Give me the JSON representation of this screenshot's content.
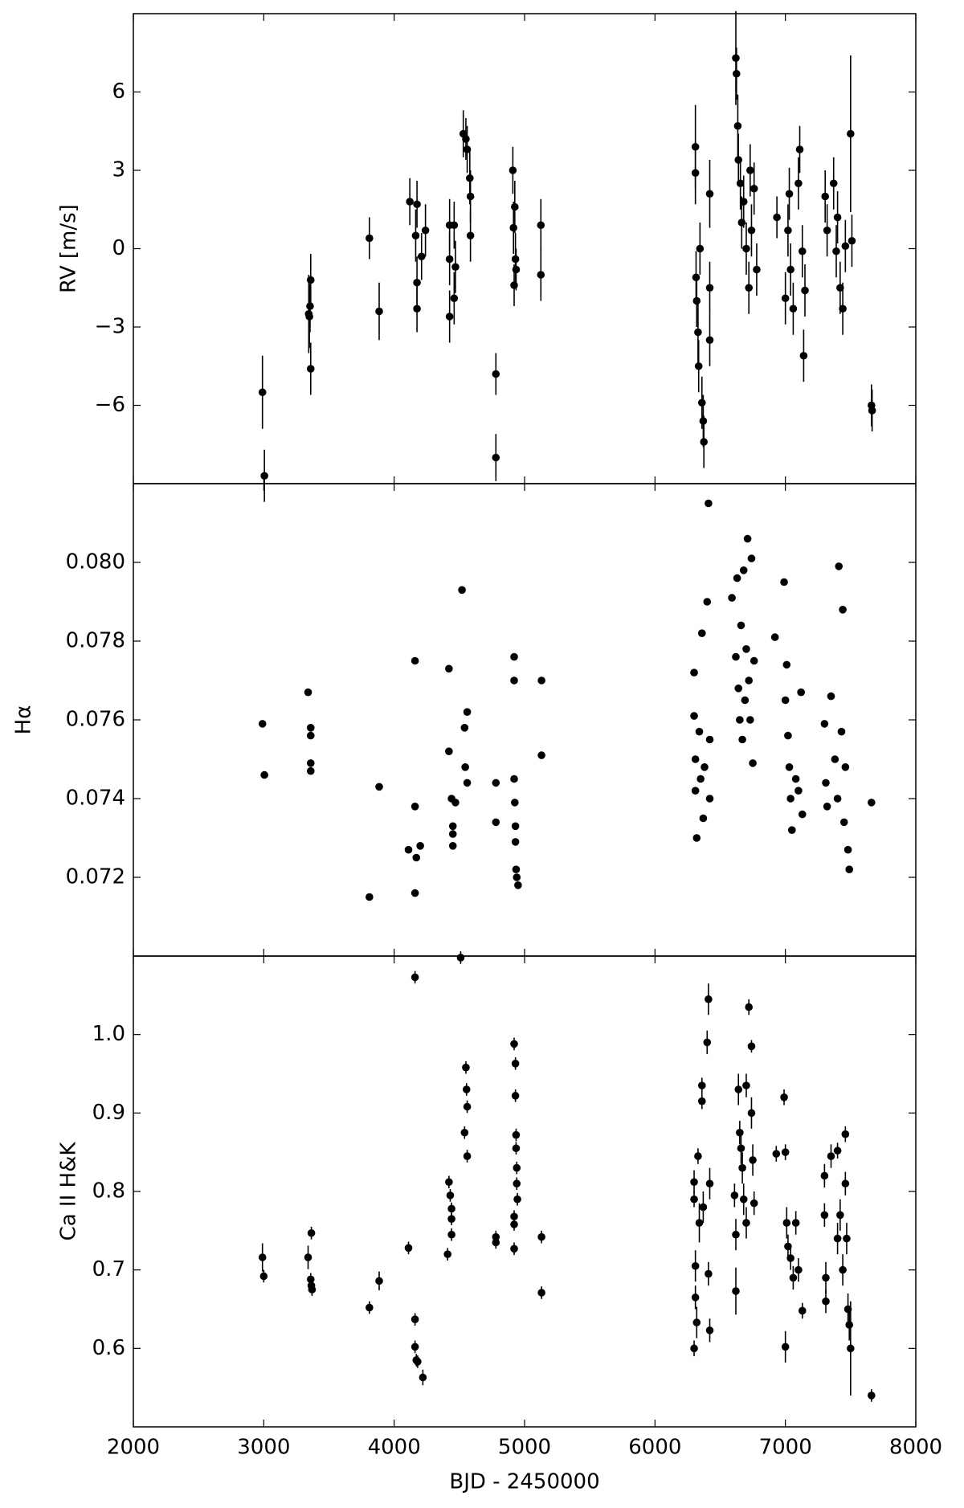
{
  "chart_data": [
    {
      "type": "scatter",
      "ylabel": "RV [m/s]",
      "color": "#000000",
      "xlim": [
        2000,
        8000
      ],
      "ylim": [
        -9,
        9
      ],
      "yticks": [
        {
          "value": -6,
          "label": "−6"
        },
        {
          "value": -3,
          "label": "−3"
        },
        0,
        3,
        6
      ],
      "x": [
        2990,
        3005,
        3345,
        3350,
        3355,
        3360,
        3360,
        3810,
        3885,
        4120,
        4175,
        4175,
        4175,
        4165,
        4210,
        4240,
        4425,
        4425,
        4425,
        4460,
        4460,
        4470,
        4530,
        4550,
        4560,
        4580,
        4585,
        4585,
        4780,
        4780,
        4910,
        4915,
        4920,
        4925,
        4930,
        4935,
        5125,
        5125,
        6310,
        6310,
        6315,
        6320,
        6330,
        6335,
        6345,
        6360,
        6370,
        6375,
        6420,
        6420,
        6420,
        6620,
        6625,
        6635,
        6640,
        6655,
        6665,
        6680,
        6700,
        6720,
        6730,
        6740,
        6760,
        6780,
        6935,
        7000,
        7020,
        7030,
        7040,
        7060,
        7100,
        7110,
        7130,
        7150,
        7140,
        7305,
        7320,
        7370,
        7390,
        7400,
        7420,
        7440,
        7460,
        7500,
        7510,
        7660,
        7665
      ],
      "values": [
        -5.5,
        -8.7,
        -2.5,
        -2.6,
        -2.2,
        -1.2,
        -4.6,
        0.4,
        -2.4,
        1.8,
        1.7,
        -1.3,
        -2.3,
        0.5,
        -0.3,
        0.7,
        0.9,
        -0.4,
        -2.6,
        0.9,
        -1.9,
        -0.7,
        4.4,
        4.2,
        3.8,
        2.7,
        2.0,
        0.5,
        -4.8,
        -8.0,
        3.0,
        0.8,
        -1.4,
        1.6,
        -0.4,
        -0.8,
        0.9,
        -1.0,
        2.9,
        3.9,
        -1.1,
        -2.0,
        -3.2,
        -4.5,
        0.0,
        -5.9,
        -6.6,
        -7.4,
        2.1,
        -1.5,
        -3.5,
        7.3,
        6.7,
        4.7,
        3.4,
        2.5,
        1.0,
        1.8,
        0.0,
        -1.5,
        3.0,
        0.7,
        2.3,
        -0.8,
        1.2,
        -1.9,
        0.7,
        2.1,
        -0.8,
        -2.3,
        2.5,
        3.8,
        -0.1,
        -1.6,
        -4.1,
        2.0,
        0.7,
        2.5,
        -0.1,
        1.2,
        -1.5,
        -2.3,
        0.1,
        4.4,
        0.3,
        -6.0,
        -6.2
      ],
      "errors": [
        1.4,
        1.0,
        1.5,
        1.2,
        1.0,
        1.0,
        1.0,
        0.8,
        1.1,
        0.9,
        0.9,
        1.0,
        0.9,
        1.0,
        0.9,
        1.0,
        1.0,
        1.0,
        1.0,
        0.9,
        1.0,
        1.0,
        0.9,
        0.8,
        0.9,
        1.0,
        1.0,
        1.0,
        0.8,
        0.9,
        0.9,
        1.0,
        0.8,
        1.0,
        1.0,
        0.8,
        1.0,
        1.0,
        1.2,
        1.6,
        1.0,
        1.0,
        1.2,
        1.0,
        1.0,
        1.0,
        1.0,
        1.0,
        1.3,
        1.0,
        1.0,
        1.8,
        1.0,
        1.2,
        1.0,
        1.0,
        1.0,
        1.0,
        1.0,
        1.0,
        1.0,
        1.0,
        1.0,
        1.0,
        0.8,
        1.0,
        1.0,
        1.0,
        1.0,
        1.0,
        1.0,
        0.9,
        1.0,
        1.0,
        1.0,
        1.0,
        1.0,
        1.0,
        1.0,
        1.0,
        1.0,
        1.0,
        1.0,
        3.0,
        1.0,
        0.8,
        0.8
      ]
    },
    {
      "type": "scatter",
      "ylabel": "Hα",
      "color": "#000000",
      "xlim": [
        2000,
        8000
      ],
      "ylim": [
        0.07,
        0.082
      ],
      "yticks": [
        {
          "value": 0.072,
          "label": "0.072"
        },
        {
          "value": 0.074,
          "label": "0.074"
        },
        {
          "value": 0.076,
          "label": "0.076"
        },
        {
          "value": 0.078,
          "label": "0.078"
        },
        {
          "value": 0.08,
          "label": "0.080"
        }
      ],
      "x": [
        2990,
        3005,
        3340,
        3360,
        3360,
        3360,
        3360,
        3810,
        3885,
        4110,
        4160,
        4160,
        4160,
        4170,
        4200,
        4420,
        4420,
        4440,
        4450,
        4450,
        4450,
        4470,
        4520,
        4540,
        4545,
        4560,
        4560,
        4780,
        4780,
        4920,
        4920,
        4920,
        4925,
        4930,
        4930,
        4935,
        4940,
        4950,
        5130,
        5130,
        6300,
        6300,
        6310,
        6310,
        6320,
        6340,
        6350,
        6360,
        6370,
        6380,
        6400,
        6410,
        6420,
        6420,
        6590,
        6620,
        6630,
        6640,
        6650,
        6660,
        6670,
        6680,
        6690,
        6700,
        6710,
        6720,
        6730,
        6740,
        6750,
        6760,
        6920,
        6990,
        7000,
        7010,
        7020,
        7030,
        7040,
        7050,
        7080,
        7100,
        7120,
        7130,
        7300,
        7310,
        7320,
        7350,
        7380,
        7400,
        7410,
        7430,
        7440,
        7450,
        7460,
        7480,
        7490,
        7660
      ],
      "values": [
        0.0759,
        0.0746,
        0.0767,
        0.0758,
        0.0756,
        0.0749,
        0.0747,
        0.0715,
        0.0743,
        0.0727,
        0.0775,
        0.0738,
        0.0716,
        0.0725,
        0.0728,
        0.0773,
        0.0752,
        0.074,
        0.0733,
        0.0731,
        0.0728,
        0.0739,
        0.0793,
        0.0758,
        0.0748,
        0.0762,
        0.0744,
        0.0744,
        0.0734,
        0.0776,
        0.077,
        0.0745,
        0.0739,
        0.0733,
        0.0729,
        0.0722,
        0.072,
        0.0718,
        0.077,
        0.0751,
        0.0772,
        0.0761,
        0.075,
        0.0742,
        0.073,
        0.0757,
        0.0745,
        0.0782,
        0.0735,
        0.0748,
        0.079,
        0.0815,
        0.0755,
        0.074,
        0.0791,
        0.0776,
        0.0796,
        0.0768,
        0.076,
        0.0784,
        0.0755,
        0.0798,
        0.0765,
        0.0778,
        0.0806,
        0.077,
        0.076,
        0.0801,
        0.0749,
        0.0775,
        0.0781,
        0.0795,
        0.0765,
        0.0774,
        0.0756,
        0.0748,
        0.074,
        0.0732,
        0.0745,
        0.0742,
        0.0767,
        0.0736,
        0.0759,
        0.0744,
        0.0738,
        0.0766,
        0.075,
        0.074,
        0.0799,
        0.0757,
        0.0788,
        0.0734,
        0.0748,
        0.0727,
        0.0722,
        0.0739
      ]
    },
    {
      "type": "scatter",
      "ylabel": "Ca II  H&K",
      "xlabel": "BJD - 2450000",
      "color": "#000000",
      "xlim": [
        2000,
        8000
      ],
      "ylim": [
        0.5,
        1.1
      ],
      "xticks": [
        2000,
        3000,
        4000,
        5000,
        6000,
        7000,
        8000
      ],
      "yticks": [
        0.6,
        0.7,
        0.8,
        0.9,
        {
          "value": 1.0,
          "label": "1.0"
        }
      ],
      "x": [
        2990,
        3000,
        3340,
        3365,
        3360,
        3365,
        3370,
        3810,
        3885,
        4110,
        4160,
        4160,
        4160,
        4170,
        4180,
        4220,
        4410,
        4420,
        4430,
        4440,
        4440,
        4440,
        4510,
        4540,
        4550,
        4555,
        4560,
        4560,
        4780,
        4780,
        4920,
        4930,
        4930,
        4935,
        4935,
        4940,
        4940,
        4945,
        4920,
        4920,
        4920,
        5130,
        5130,
        6300,
        6300,
        6310,
        6310,
        6320,
        6300,
        6330,
        6340,
        6360,
        6360,
        6370,
        6400,
        6410,
        6410,
        6420,
        6420,
        6610,
        6620,
        6620,
        6640,
        6650,
        6660,
        6670,
        6680,
        6700,
        6700,
        6720,
        6740,
        6740,
        6750,
        6760,
        6930,
        6990,
        7000,
        7000,
        7010,
        7020,
        7040,
        7060,
        7080,
        7100,
        7130,
        7300,
        7300,
        7310,
        7310,
        7350,
        7400,
        7400,
        7420,
        7440,
        7460,
        7460,
        7470,
        7480,
        7490,
        7500,
        7660
      ],
      "values": [
        0.716,
        0.692,
        0.716,
        0.747,
        0.688,
        0.68,
        0.675,
        0.652,
        0.686,
        0.728,
        1.073,
        0.637,
        0.602,
        0.585,
        0.583,
        0.563,
        0.72,
        0.812,
        0.795,
        0.778,
        0.765,
        0.745,
        1.098,
        0.875,
        0.958,
        0.93,
        0.908,
        0.845,
        0.742,
        0.735,
        0.988,
        0.963,
        0.922,
        0.872,
        0.855,
        0.83,
        0.81,
        0.79,
        0.768,
        0.758,
        0.727,
        0.742,
        0.671,
        0.812,
        0.79,
        0.705,
        0.665,
        0.633,
        0.6,
        0.845,
        0.76,
        0.935,
        0.915,
        0.78,
        0.99,
        1.045,
        0.695,
        0.81,
        0.623,
        0.795,
        0.745,
        0.673,
        0.93,
        0.875,
        0.855,
        0.83,
        0.79,
        0.935,
        0.76,
        1.035,
        0.985,
        0.9,
        0.84,
        0.785,
        0.848,
        0.92,
        0.85,
        0.602,
        0.76,
        0.73,
        0.715,
        0.69,
        0.76,
        0.7,
        0.648,
        0.82,
        0.77,
        0.69,
        0.66,
        0.845,
        0.852,
        0.74,
        0.77,
        0.7,
        0.873,
        0.81,
        0.74,
        0.65,
        0.63,
        0.6,
        0.54
      ],
      "errors": [
        0.018,
        0.008,
        0.015,
        0.008,
        0.008,
        0.008,
        0.008,
        0.008,
        0.012,
        0.008,
        0.008,
        0.008,
        0.008,
        0.008,
        0.008,
        0.01,
        0.008,
        0.008,
        0.008,
        0.008,
        0.008,
        0.008,
        0.008,
        0.008,
        0.008,
        0.008,
        0.008,
        0.008,
        0.008,
        0.008,
        0.008,
        0.008,
        0.008,
        0.008,
        0.008,
        0.008,
        0.008,
        0.008,
        0.008,
        0.008,
        0.008,
        0.008,
        0.008,
        0.015,
        0.01,
        0.02,
        0.015,
        0.02,
        0.01,
        0.01,
        0.025,
        0.01,
        0.01,
        0.02,
        0.015,
        0.02,
        0.015,
        0.02,
        0.015,
        0.015,
        0.02,
        0.03,
        0.02,
        0.015,
        0.02,
        0.02,
        0.02,
        0.015,
        0.02,
        0.01,
        0.008,
        0.02,
        0.02,
        0.015,
        0.01,
        0.01,
        0.01,
        0.02,
        0.02,
        0.015,
        0.015,
        0.015,
        0.015,
        0.015,
        0.01,
        0.015,
        0.015,
        0.02,
        0.015,
        0.015,
        0.01,
        0.02,
        0.02,
        0.02,
        0.01,
        0.015,
        0.02,
        0.02,
        0.02,
        0.06,
        0.008
      ]
    }
  ]
}
